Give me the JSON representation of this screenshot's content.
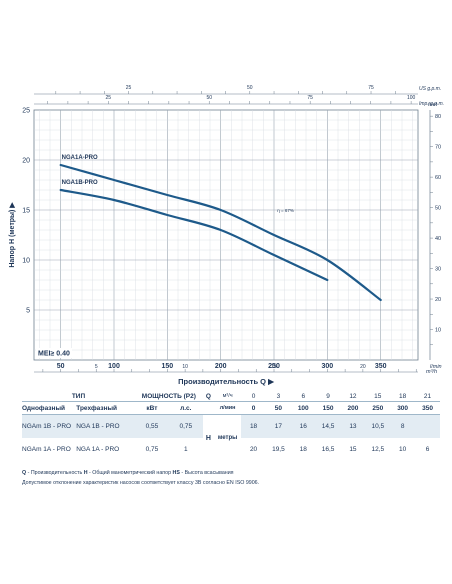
{
  "chart_data": {
    "type": "line",
    "ylabel": "Напор H (метры)",
    "xlabel": "Производительность Q",
    "x_unit_top": "l/min",
    "x_unit_bottom": "m³/h",
    "top_unit_us": "US g.p.m.",
    "top_unit_imp": "Imp. g.p.m.",
    "right_unit": "feet",
    "xlim": [
      25,
      385
    ],
    "ylim": [
      0,
      25
    ],
    "x_ticks": [
      50,
      100,
      150,
      200,
      250,
      300,
      350
    ],
    "y_ticks": [
      5,
      10,
      15,
      20,
      25
    ],
    "m3h_ticks": [
      5,
      10,
      15,
      20
    ],
    "us_gpm_ticks": [
      25,
      50,
      75,
      100
    ],
    "imp_gpm_ticks": [
      25,
      50,
      75
    ],
    "feet_ticks": [
      10,
      20,
      30,
      40,
      50,
      60,
      70,
      80
    ],
    "annotation": "MEI≥ 0.40",
    "efficiency_label": "η = 67%",
    "grid": true,
    "series": [
      {
        "name": "NGA1A-PRO",
        "color": "#1e5a8a",
        "x": [
          50,
          100,
          150,
          200,
          250,
          300,
          350
        ],
        "y": [
          19.5,
          18,
          16.5,
          15,
          12.5,
          10,
          6
        ]
      },
      {
        "name": "NGA1B-PRO",
        "color": "#1e5a8a",
        "x": [
          50,
          100,
          150,
          200,
          250,
          300
        ],
        "y": [
          17,
          16,
          14.5,
          13,
          10.5,
          8
        ]
      }
    ]
  },
  "table": {
    "head1": {
      "type": "ТИП",
      "power": "МОЩНОСТЬ (P2)",
      "q_symbol": "Q",
      "unit_m3h": "м³/ч",
      "m3h_values": [
        "0",
        "3",
        "6",
        "9",
        "12",
        "15",
        "18",
        "21"
      ]
    },
    "head2": {
      "single": "Однофазный",
      "three": "Трехфазный",
      "kw": "кВт",
      "hp": "л.с.",
      "unit_lmin": "л/мин",
      "lmin_values": [
        "0",
        "50",
        "100",
        "150",
        "200",
        "250",
        "300",
        "350"
      ]
    },
    "h_label": "H",
    "h_unit": "метры",
    "rows": [
      {
        "single": "NGAm 1B - PRO",
        "three": "NGA 1B - PRO",
        "kw": "0,55",
        "hp": "0,75",
        "values": [
          "18",
          "17",
          "16",
          "14,5",
          "13",
          "10,5",
          "8",
          ""
        ]
      },
      {
        "single": "NGAm 1A - PRO",
        "three": "NGA 1A - PRO",
        "kw": "0,75",
        "hp": "1",
        "values": [
          "20",
          "19,5",
          "18",
          "16,5",
          "15",
          "12,5",
          "10",
          "6"
        ]
      }
    ]
  },
  "notes": {
    "line1_q": "Q",
    "line1_q_text": " - Производительность  ",
    "line1_h": "H",
    "line1_h_text": " - Общий манометрический напор  ",
    "line1_hs": "HS",
    "line1_hs_text": " - Высота всасывания",
    "line2": "Допустимое отклонение характеристик насосов соответствует классу 3B согласно EN ISO 9906."
  }
}
